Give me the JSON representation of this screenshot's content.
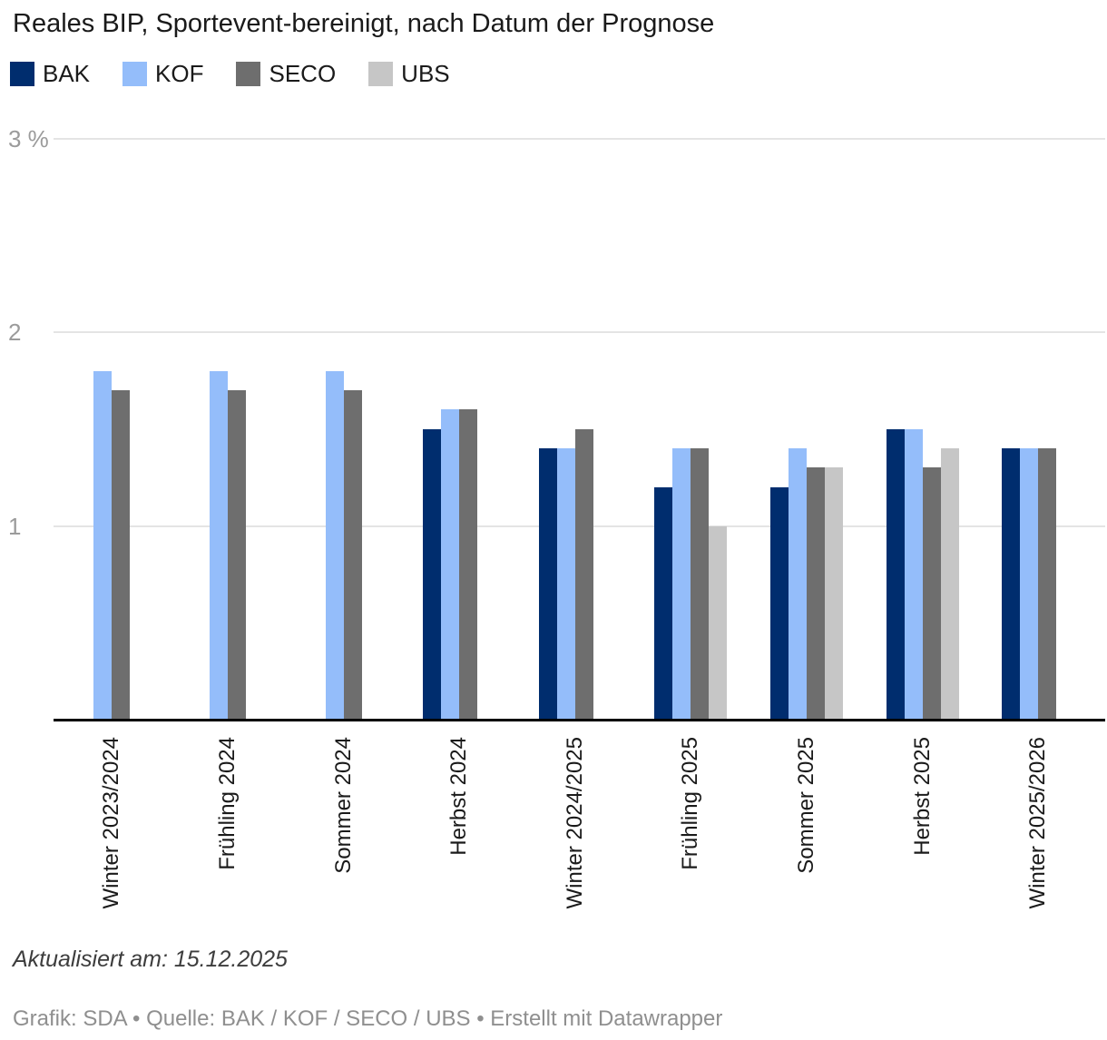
{
  "title": "Reales BIP, Sportevent-bereinigt, nach Datum der Prognose",
  "chart_data": {
    "type": "bar",
    "title": "Reales BIP, Sportevent-bereinigt, nach Datum der Prognose",
    "categories": [
      "Winter 2023/2024",
      "Frühling 2024",
      "Sommer 2024",
      "Herbst 2024",
      "Winter 2024/2025",
      "Frühling 2025",
      "Sommer 2025",
      "Herbst 2025",
      "Winter 2025/2026"
    ],
    "series": [
      {
        "name": "BAK",
        "color": "#002d6e",
        "values": [
          null,
          null,
          null,
          1.5,
          1.4,
          1.2,
          1.2,
          1.5,
          1.4
        ]
      },
      {
        "name": "KOF",
        "color": "#94bdfa",
        "values": [
          1.8,
          1.8,
          1.8,
          1.6,
          1.4,
          1.4,
          1.4,
          1.5,
          1.4
        ]
      },
      {
        "name": "SECO",
        "color": "#6e6e6e",
        "values": [
          1.7,
          1.7,
          1.7,
          1.6,
          1.5,
          1.4,
          1.3,
          1.3,
          1.4
        ]
      },
      {
        "name": "UBS",
        "color": "#c6c6c6",
        "values": [
          null,
          null,
          null,
          null,
          null,
          1.0,
          1.3,
          1.4,
          null
        ]
      }
    ],
    "yticks": [
      {
        "value": 1,
        "label": "1"
      },
      {
        "value": 2,
        "label": "2"
      },
      {
        "value": 3,
        "label": "3 %"
      }
    ],
    "ylim": [
      0,
      3
    ],
    "grid": true,
    "legend_position": "top",
    "xlabel": "",
    "ylabel": "%"
  },
  "footer": {
    "updated": "Aktualisiert am: 15.12.2025",
    "credit": "Grafik: SDA • Quelle: BAK / KOF / SECO / UBS • Erstellt mit Datawrapper"
  }
}
